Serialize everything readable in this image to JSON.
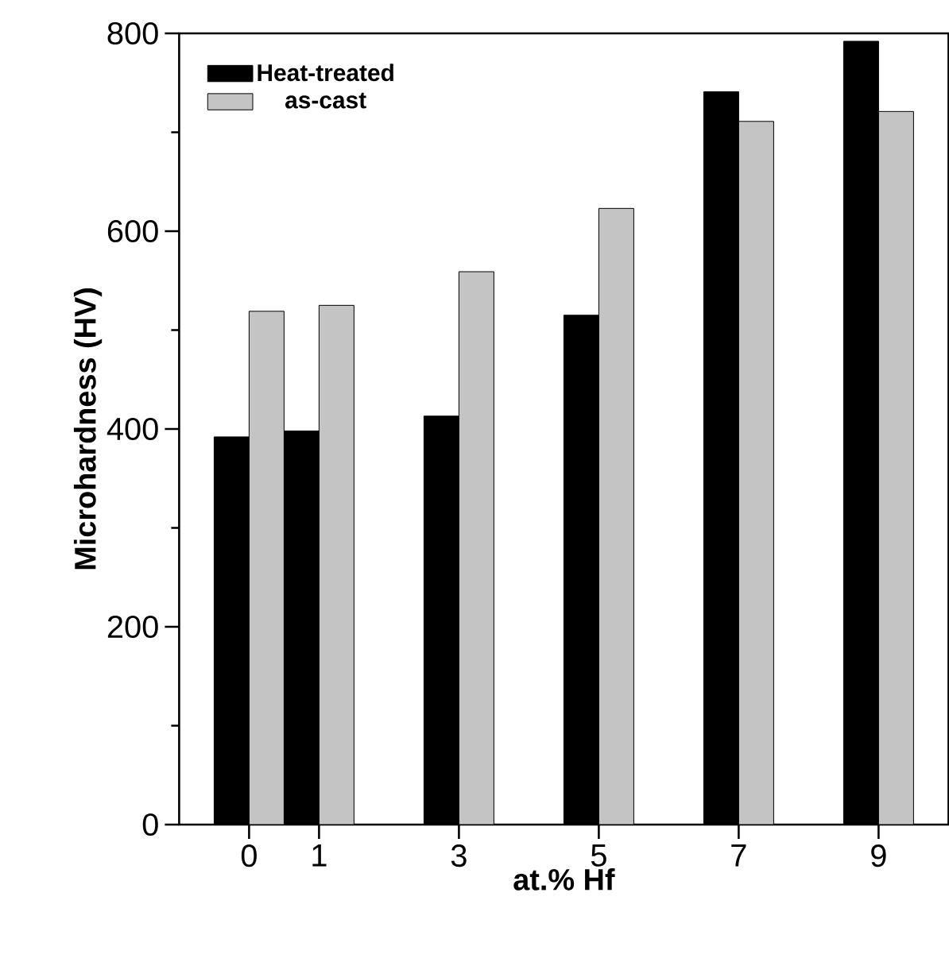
{
  "chart_data": {
    "type": "bar",
    "xlabel": "at.% Hf",
    "ylabel": "Microhardness (HV)",
    "x": [
      0,
      1,
      3,
      5,
      7,
      9
    ],
    "series": [
      {
        "name": "Heat-treated",
        "color": "#000000",
        "values": [
          392,
          398,
          413,
          515,
          741,
          792
        ]
      },
      {
        "name": "as-cast",
        "color": "#c4c4c4",
        "values": [
          519,
          525,
          559,
          623,
          711,
          721
        ]
      }
    ],
    "xlim": [
      -1,
      10
    ],
    "xticks": [
      0,
      1,
      3,
      5,
      7,
      9
    ],
    "ylim": [
      0,
      800
    ],
    "yticks": [
      0,
      200,
      400,
      600,
      800
    ],
    "legend": "top left"
  }
}
